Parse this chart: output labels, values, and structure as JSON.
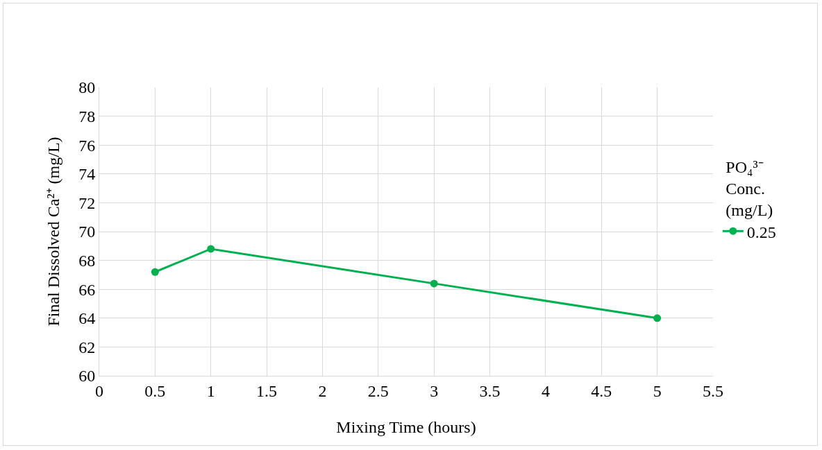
{
  "chart_data": {
    "type": "line",
    "xlabel": "Mixing Time (hours)",
    "ylabel": "Final Dissolved Ca²⁺ (mg/L)",
    "legend_title": "PO₄³⁻ Conc. (mg/L)",
    "x": [
      0.5,
      1,
      3,
      5
    ],
    "series": [
      {
        "name": "0.25",
        "color": "#00b050",
        "values": [
          67.2,
          68.8,
          66.4,
          64.0
        ]
      }
    ],
    "xlim": [
      0,
      5.5
    ],
    "xticks": [
      0,
      0.5,
      1,
      1.5,
      2,
      2.5,
      3,
      3.5,
      4,
      4.5,
      5,
      5.5
    ],
    "ylim": [
      60,
      80
    ],
    "yticks": [
      60,
      62,
      64,
      66,
      68,
      70,
      72,
      74,
      76,
      78,
      80
    ],
    "grid": true,
    "legend": "right",
    "marker": "circle",
    "line_style": "solid"
  }
}
